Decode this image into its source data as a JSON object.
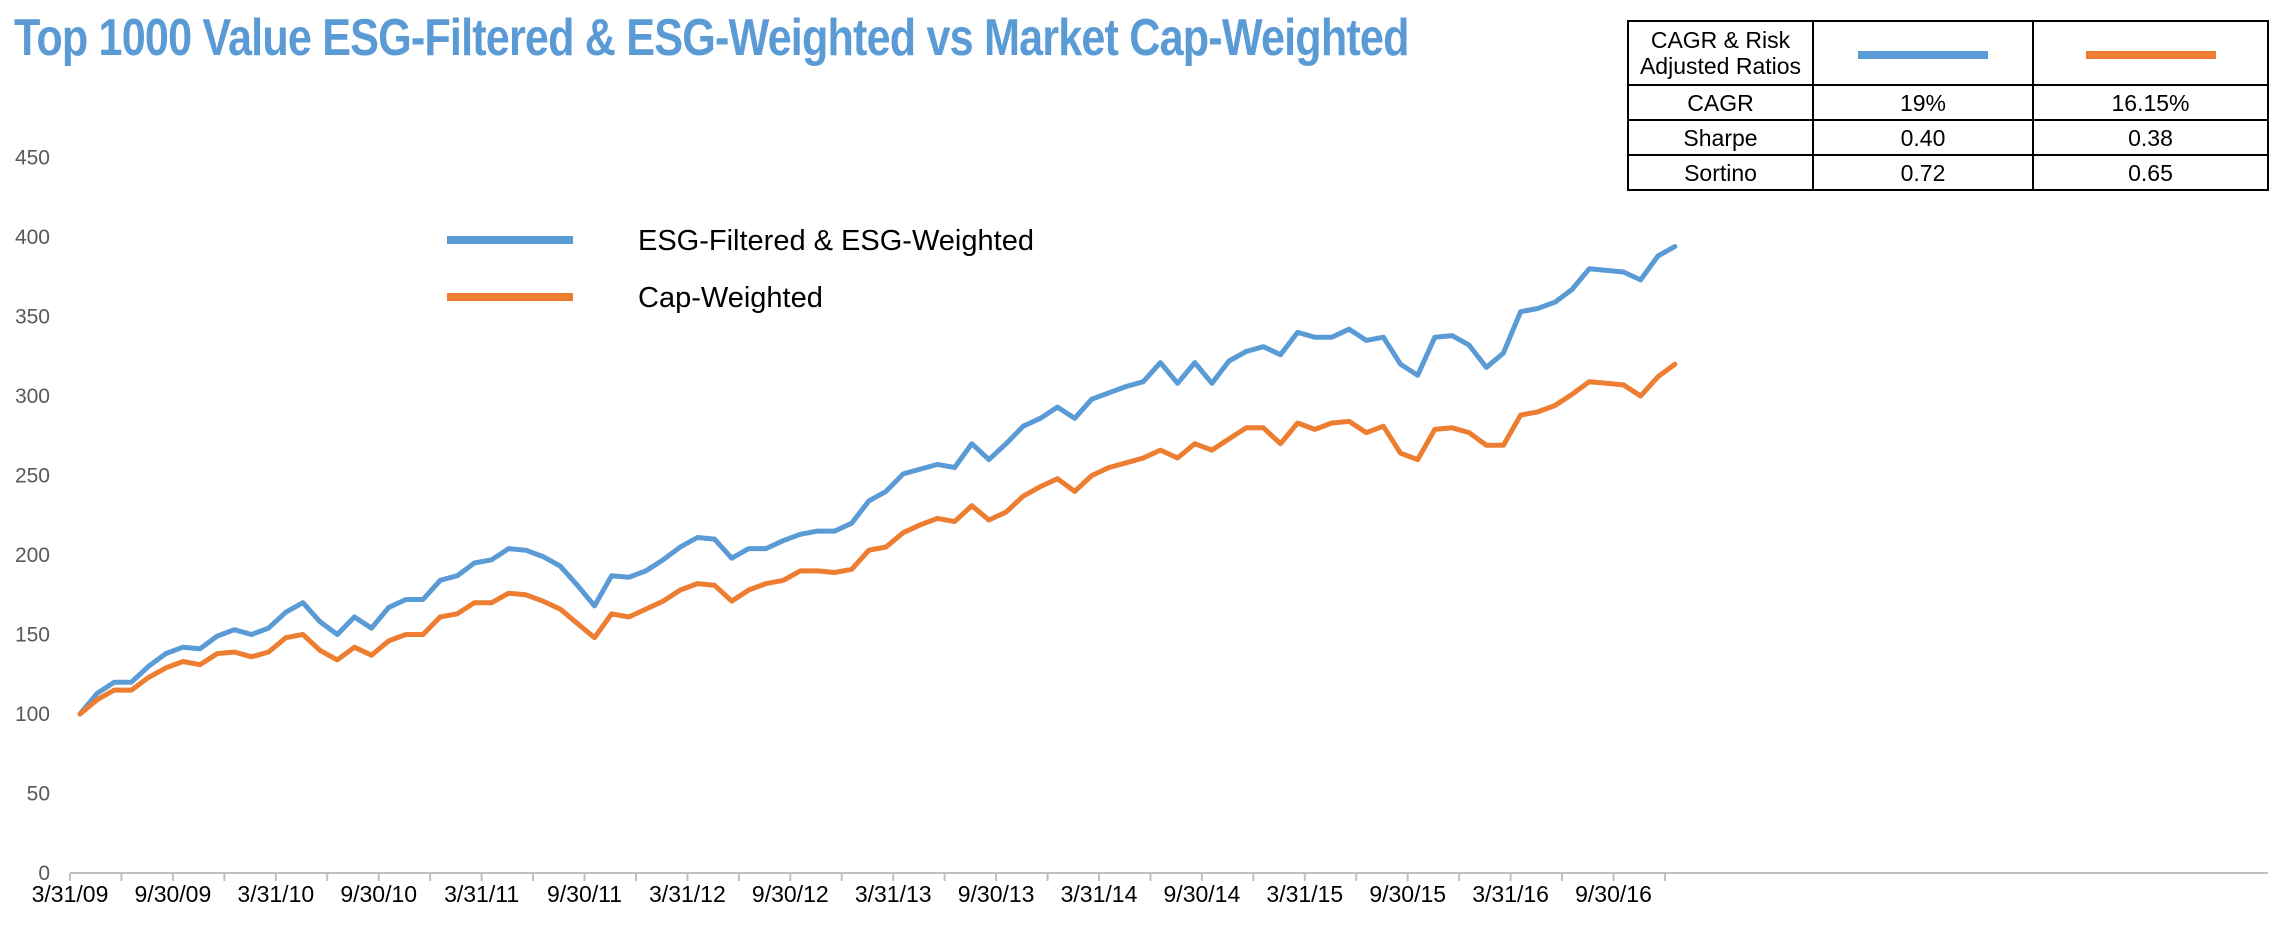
{
  "title": "Top 1000 Value ESG-Filtered & ESG-Weighted vs Market Cap-Weighted",
  "colors": {
    "title": "#5b9bd5",
    "esg": "#5b9bd5",
    "cap": "#ed7d31",
    "axis": "#bfbfbf"
  },
  "stats_table": {
    "header": "CAGR & Risk Adjusted Ratios",
    "rows": [
      {
        "label": "CAGR",
        "esg": "19%",
        "cap": "16.15%"
      },
      {
        "label": "Sharpe",
        "esg": "0.40",
        "cap": "0.38"
      },
      {
        "label": "Sortino",
        "esg": "0.72",
        "cap": "0.65"
      }
    ]
  },
  "chart_data": {
    "type": "line",
    "title": "Top 1000 Value ESG-Filtered & ESG-Weighted vs Market Cap-Weighted",
    "xlabel": "",
    "ylabel": "",
    "ylim": [
      0,
      450
    ],
    "yticks": [
      0,
      50,
      100,
      150,
      200,
      250,
      300,
      350,
      400,
      450
    ],
    "xtick_labels": [
      "3/31/09",
      "9/30/09",
      "3/31/10",
      "9/30/10",
      "3/31/11",
      "9/30/11",
      "3/31/12",
      "9/30/12",
      "3/31/13",
      "9/30/13",
      "3/31/14",
      "9/30/14",
      "3/31/15",
      "9/30/15",
      "3/31/16",
      "9/30/16"
    ],
    "x_start": "3/31/09",
    "x_interval": "monthly",
    "legend_position": "upper-left",
    "grid": false,
    "series": [
      {
        "name": "ESG-Filtered & ESG-Weighted",
        "color": "#5b9bd5",
        "values": [
          100,
          113,
          120,
          120,
          130,
          138,
          142,
          141,
          149,
          153,
          150,
          154,
          164,
          170,
          158,
          150,
          161,
          154,
          167,
          172,
          172,
          184,
          187,
          195,
          197,
          204,
          203,
          199,
          193,
          181,
          168,
          187,
          186,
          190,
          197,
          205,
          211,
          210,
          198,
          204,
          204,
          209,
          213,
          215,
          215,
          220,
          234,
          240,
          251,
          254,
          257,
          255,
          270,
          260,
          270,
          281,
          286,
          293,
          286,
          298,
          302,
          306,
          309,
          321,
          308,
          321,
          308,
          322,
          328,
          331,
          326,
          340,
          337,
          337,
          342,
          335,
          337,
          320,
          313,
          337,
          338,
          332,
          318,
          327,
          353,
          355,
          359,
          367,
          380,
          379,
          378,
          373,
          388,
          394
        ]
      },
      {
        "name": "Cap-Weighted",
        "color": "#ed7d31",
        "values": [
          100,
          109,
          115,
          115,
          123,
          129,
          133,
          131,
          138,
          139,
          136,
          139,
          148,
          150,
          140,
          134,
          142,
          137,
          146,
          150,
          150,
          161,
          163,
          170,
          170,
          176,
          175,
          171,
          166,
          157,
          148,
          163,
          161,
          166,
          171,
          178,
          182,
          181,
          171,
          178,
          182,
          184,
          190,
          190,
          189,
          191,
          203,
          205,
          214,
          219,
          223,
          221,
          231,
          222,
          227,
          237,
          243,
          248,
          240,
          250,
          255,
          258,
          261,
          266,
          261,
          270,
          266,
          273,
          280,
          280,
          270,
          283,
          279,
          283,
          284,
          277,
          281,
          264,
          260,
          279,
          280,
          277,
          269,
          269,
          288,
          290,
          294,
          301,
          309,
          308,
          307,
          300,
          312,
          320
        ]
      }
    ]
  }
}
